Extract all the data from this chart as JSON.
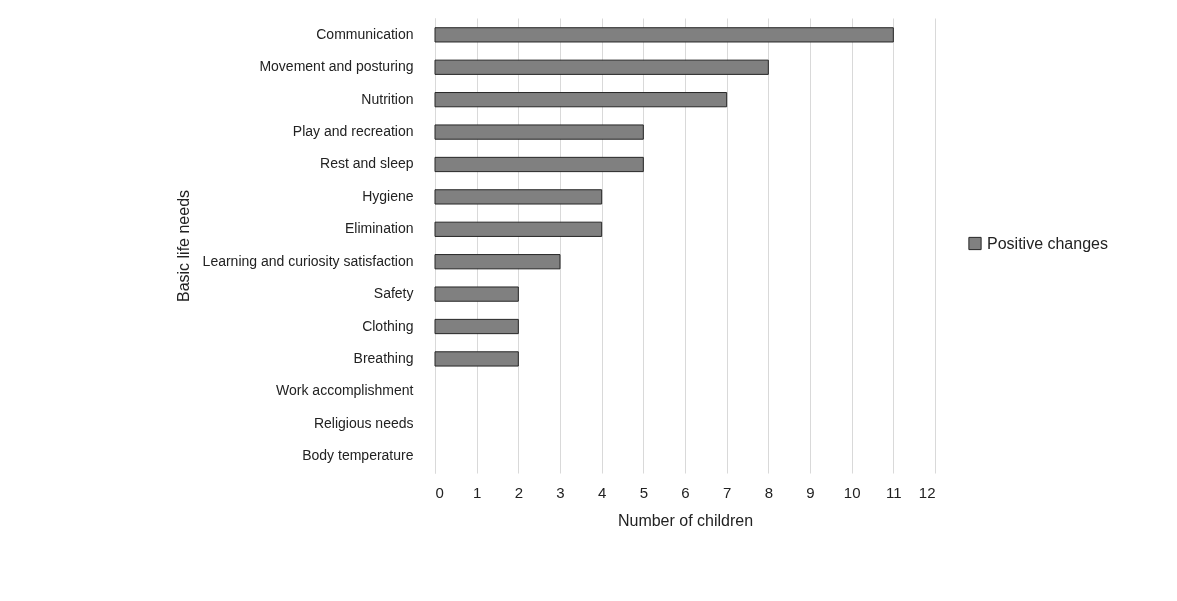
{
  "chart_data": {
    "type": "bar",
    "orientation": "horizontal",
    "categories": [
      "Communication",
      "Movement and posturing",
      "Nutrition",
      "Play and recreation",
      "Rest and sleep",
      "Hygiene",
      "Elimination",
      "Learning and curiosity satisfaction",
      "Safety",
      "Clothing",
      "Breathing",
      "Work accomplishment",
      "Religious needs",
      "Body temperature"
    ],
    "series": [
      {
        "name": "Positive changes",
        "color": "#808080",
        "values": [
          11,
          8,
          7,
          5,
          5,
          4,
          4,
          3,
          2,
          2,
          2,
          0,
          0,
          0
        ]
      }
    ],
    "xlabel": "Number of children",
    "ylabel": "Basic life needs",
    "xlim": [
      0,
      12
    ],
    "xticks": [
      0,
      1,
      2,
      3,
      4,
      5,
      6,
      7,
      8,
      9,
      10,
      11,
      12
    ],
    "grid": "x",
    "legend": "right"
  }
}
